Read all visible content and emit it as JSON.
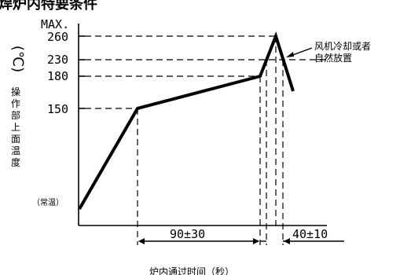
{
  "title_partial": "焊炉内特要条件",
  "axis": {
    "y_max_label": "MAX.",
    "y_unit": "(℃)",
    "y_label": "操作部上面温度",
    "x_label": "炉内通过时间（秒）"
  },
  "y_ticks": [
    "260",
    "230",
    "180",
    "150"
  ],
  "y_base_label": "（常温）",
  "annotation": {
    "line1": "风机冷却或者",
    "line2": "自然放置"
  },
  "durations": {
    "preheat": "90±30",
    "peak": "40±10"
  }
}
